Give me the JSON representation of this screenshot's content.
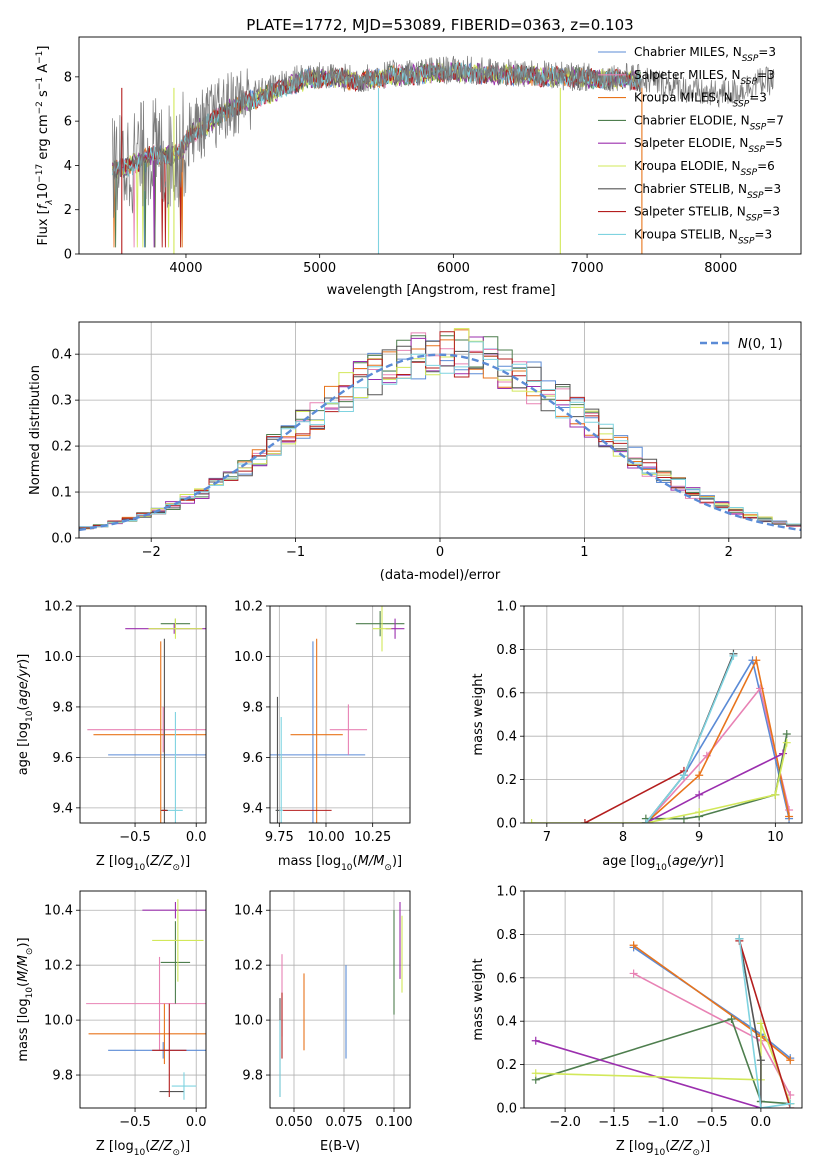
{
  "figure_title": "PLATE=1772, MJD=53089, FIBERID=0363, z=0.103",
  "colors": {
    "Chabrier MILES": "#5b8bd6",
    "Salpeter MILES": "#e882b4",
    "Kroupa MILES": "#e8741c",
    "Chabrier ELODIE": "#4e7e4e",
    "Salpeter ELODIE": "#9b2fae",
    "Kroupa ELODIE": "#d2e85a",
    "Chabrier STELIB": "#555555",
    "Salpeter STELIB": "#b41e1e",
    "Kroupa STELIB": "#7fd3e0",
    "gaussian": "#5b8bd6"
  },
  "chart_data": [
    {
      "id": "spectrum",
      "type": "line",
      "title": "PLATE=1772, MJD=53089, FIBERID=0363, z=0.103",
      "xlabel": "wavelength [Angstrom, rest frame]",
      "ylabel": "Flux [f_λ 10^-17 erg cm^-2 s^-1 A^-1]",
      "xlim": [
        3200,
        8600
      ],
      "ylim": [
        0,
        9.8
      ],
      "xticks": [
        4000,
        5000,
        6000,
        7000,
        8000
      ],
      "yticks": [
        0,
        2,
        4,
        6,
        8
      ],
      "legend": "right",
      "legend_entries": [
        {
          "name": "Chabrier MILES",
          "label_main": "Chabrier MILES, N",
          "label_sub": "SSP",
          "label_end": "=3"
        },
        {
          "name": "Salpeter MILES",
          "label_main": "Salpeter MILES, N",
          "label_sub": "SSP",
          "label_end": "=3"
        },
        {
          "name": "Kroupa MILES",
          "label_main": "Kroupa MILES, N",
          "label_sub": "SSP",
          "label_end": "=3"
        },
        {
          "name": "Chabrier ELODIE",
          "label_main": "Chabrier ELODIE, N",
          "label_sub": "SSP",
          "label_end": "=7"
        },
        {
          "name": "Salpeter ELODIE",
          "label_main": "Salpeter ELODIE, N",
          "label_sub": "SSP",
          "label_end": "=5"
        },
        {
          "name": "Kroupa ELODIE",
          "label_main": "Kroupa ELODIE, N",
          "label_sub": "SSP",
          "label_end": "=6"
        },
        {
          "name": "Chabrier STELIB",
          "label_main": "Chabrier STELIB, N",
          "label_sub": "SSP",
          "label_end": "=3"
        },
        {
          "name": "Salpeter STELIB",
          "label_main": "Salpeter STELIB, N",
          "label_sub": "SSP",
          "label_end": "=3"
        },
        {
          "name": "Kroupa STELIB",
          "label_main": "Kroupa STELIB, N",
          "label_sub": "SSP",
          "label_end": "=3"
        }
      ],
      "data_envelope": [
        [
          3450,
          3.9
        ],
        [
          3550,
          4.1
        ],
        [
          3650,
          4.4
        ],
        [
          3750,
          4.7
        ],
        [
          3850,
          4.3
        ],
        [
          3950,
          4.6
        ],
        [
          4050,
          5.6
        ],
        [
          4150,
          6.0
        ],
        [
          4250,
          6.4
        ],
        [
          4350,
          6.8
        ],
        [
          4500,
          7.2
        ],
        [
          4700,
          7.6
        ],
        [
          4900,
          8.1
        ],
        [
          5100,
          8.0
        ],
        [
          5300,
          7.9
        ],
        [
          5500,
          8.1
        ],
        [
          5700,
          8.2
        ],
        [
          5900,
          8.3
        ],
        [
          6100,
          8.3
        ],
        [
          6300,
          8.2
        ],
        [
          6500,
          8.1
        ],
        [
          6700,
          8.1
        ],
        [
          6900,
          8.0
        ],
        [
          7100,
          8.0
        ],
        [
          7300,
          8.0
        ],
        [
          7500,
          7.8
        ],
        [
          7700,
          7.5
        ],
        [
          7900,
          7.2
        ],
        [
          8100,
          7.3
        ],
        [
          8300,
          7.8
        ]
      ],
      "model_envelope": [
        [
          3450,
          3.8
        ],
        [
          3550,
          3.9
        ],
        [
          3650,
          4.2
        ],
        [
          3750,
          4.5
        ],
        [
          3850,
          4.4
        ],
        [
          3950,
          4.6
        ],
        [
          4050,
          5.5
        ],
        [
          4150,
          5.8
        ],
        [
          4250,
          6.3
        ],
        [
          4350,
          6.6
        ],
        [
          4500,
          7.0
        ],
        [
          4700,
          7.4
        ],
        [
          4900,
          7.9
        ],
        [
          5100,
          8.0
        ],
        [
          5300,
          7.8
        ],
        [
          5500,
          8.0
        ],
        [
          5700,
          8.1
        ],
        [
          5900,
          8.2
        ],
        [
          6100,
          8.2
        ],
        [
          6300,
          8.1
        ],
        [
          6500,
          8.1
        ],
        [
          6700,
          8.0
        ],
        [
          6900,
          8.0
        ],
        [
          7100,
          7.9
        ],
        [
          7300,
          7.9
        ],
        [
          7400,
          7.8
        ]
      ]
    },
    {
      "id": "residuals",
      "type": "line",
      "xlabel": "(data-model)/error",
      "ylabel": "Normed distribution",
      "xlim": [
        -2.5,
        2.5
      ],
      "ylim": [
        0,
        0.47
      ],
      "xticks": [
        -2,
        -1,
        0,
        1,
        2
      ],
      "yticks": [
        0.0,
        0.1,
        0.2,
        0.3,
        0.4
      ],
      "legend": "top-right",
      "legend_label": "N(0,1)",
      "bin_width": 0.1
    },
    {
      "id": "age_vs_Z",
      "type": "scatter",
      "xlabel": "Z [log10(Z/Z⊙)]",
      "ylabel": "age [log10(age/yr)]",
      "xlim": [
        -0.95,
        0.08
      ],
      "ylim": [
        9.34,
        10.2
      ],
      "xticks": [
        -0.5,
        0.0
      ],
      "yticks": [
        9.4,
        9.6,
        9.8,
        10.0,
        10.2
      ],
      "points": [
        {
          "series": "Chabrier MILES",
          "x": -0.27,
          "y": 9.61,
          "xerr": 0.45,
          "yerr": 0.0
        },
        {
          "series": "Salpeter MILES",
          "x": -0.27,
          "y": 9.71,
          "xerr": 0.62,
          "yerr": 0.09
        },
        {
          "series": "Kroupa MILES",
          "x": -0.29,
          "y": 9.69,
          "xerr": 0.55,
          "yerr": 0.37
        },
        {
          "series": "Chabrier ELODIE",
          "x": -0.17,
          "y": 10.13,
          "xerr": 0.12,
          "yerr": 0.02
        },
        {
          "series": "Salpeter ELODIE",
          "x": -0.18,
          "y": 10.11,
          "xerr": 0.4,
          "yerr": 0.02
        },
        {
          "series": "Kroupa ELODIE",
          "x": -0.17,
          "y": 10.11,
          "xerr": 0.22,
          "yerr": 0.04
        },
        {
          "series": "Chabrier STELIB",
          "x": -0.26,
          "y": 9.39,
          "xerr": 0.03,
          "yerr": 0.68
        },
        {
          "series": "Salpeter STELIB",
          "x": -0.26,
          "y": 9.39,
          "xerr": 0.02,
          "yerr": 0.0
        },
        {
          "series": "Kroupa STELIB",
          "x": -0.17,
          "y": 9.39,
          "xerr": 0.06,
          "yerr": 0.39
        }
      ]
    },
    {
      "id": "age_vs_mass",
      "type": "scatter",
      "xlabel": "mass [log10(M/M⊙)]",
      "ylabel": "",
      "xlim": [
        9.7,
        10.45
      ],
      "ylim": [
        9.34,
        10.2
      ],
      "xticks": [
        9.75,
        10.0,
        10.25
      ],
      "yticks": [
        9.4,
        9.6,
        9.8,
        10.0,
        10.2
      ],
      "points": [
        {
          "series": "Chabrier MILES",
          "x": 9.93,
          "y": 9.61,
          "xerr": 0.28,
          "yerr": 0.45
        },
        {
          "series": "Salpeter MILES",
          "x": 10.12,
          "y": 9.71,
          "xerr": 0.1,
          "yerr": 0.1
        },
        {
          "series": "Kroupa MILES",
          "x": 9.95,
          "y": 9.69,
          "xerr": 0.14,
          "yerr": 0.38
        },
        {
          "series": "Chabrier ELODIE",
          "x": 10.29,
          "y": 10.13,
          "xerr": 0.13,
          "yerr": 0.05
        },
        {
          "series": "Salpeter ELODIE",
          "x": 10.37,
          "y": 10.11,
          "xerr": 0.05,
          "yerr": 0.04
        },
        {
          "series": "Kroupa ELODIE",
          "x": 10.3,
          "y": 10.11,
          "xerr": 0.05,
          "yerr": 0.09
        },
        {
          "series": "Chabrier STELIB",
          "x": 9.74,
          "y": 9.39,
          "xerr": 0.01,
          "yerr": 0.45
        },
        {
          "series": "Salpeter STELIB",
          "x": 9.89,
          "y": 9.39,
          "xerr": 0.14,
          "yerr": 0.0
        },
        {
          "series": "Kroupa STELIB",
          "x": 9.76,
          "y": 9.39,
          "xerr": 0.01,
          "yerr": 0.37
        }
      ]
    },
    {
      "id": "weight_vs_age",
      "type": "line",
      "xlabel": "age [log10(age/yr)]",
      "ylabel": "mass weight",
      "xlim": [
        6.7,
        10.35
      ],
      "ylim": [
        0,
        1.0
      ],
      "xticks": [
        7,
        8,
        9,
        10
      ],
      "yticks": [
        0.0,
        0.2,
        0.4,
        0.6,
        0.8,
        1.0
      ],
      "series": [
        {
          "name": "Chabrier MILES",
          "x": [
            8.3,
            8.8,
            9.7,
            10.18
          ],
          "y": [
            0.0,
            0.22,
            0.75,
            0.02
          ]
        },
        {
          "name": "Salpeter MILES",
          "x": [
            8.3,
            9.1,
            9.8,
            10.18
          ],
          "y": [
            0.0,
            0.31,
            0.62,
            0.06
          ]
        },
        {
          "name": "Kroupa MILES",
          "x": [
            8.3,
            9.0,
            9.75,
            10.18
          ],
          "y": [
            0.0,
            0.22,
            0.75,
            0.03
          ]
        },
        {
          "name": "Chabrier ELODIE",
          "x": [
            8.3,
            8.8,
            9.0,
            10.0,
            10.15
          ],
          "y": [
            0.02,
            0.02,
            0.03,
            0.13,
            0.41
          ]
        },
        {
          "name": "Salpeter ELODIE",
          "x": [
            8.3,
            9.0,
            10.1
          ],
          "y": [
            0.0,
            0.13,
            0.32
          ]
        },
        {
          "name": "Kroupa ELODIE",
          "x": [
            6.8,
            8.3,
            9.0,
            10.0,
            10.15
          ],
          "y": [
            0.0,
            0.0,
            0.05,
            0.13,
            0.37
          ]
        },
        {
          "name": "Chabrier STELIB",
          "x": [
            8.3,
            8.8,
            9.45
          ],
          "y": [
            0.0,
            0.22,
            0.78
          ]
        },
        {
          "name": "Salpeter STELIB",
          "x": [
            7.5,
            8.8
          ],
          "y": [
            0.0,
            0.24
          ]
        },
        {
          "name": "Kroupa STELIB",
          "x": [
            8.3,
            8.8,
            9.45
          ],
          "y": [
            0.0,
            0.22,
            0.77
          ]
        }
      ]
    },
    {
      "id": "mass_vs_Z",
      "type": "scatter",
      "xlabel": "Z [log10(Z/Z⊙)]",
      "ylabel": "mass [log10(M/M⊙)]",
      "xlim": [
        -0.95,
        0.08
      ],
      "ylim": [
        9.68,
        10.47
      ],
      "xticks": [
        -0.5,
        0.0
      ],
      "yticks": [
        9.8,
        10.0,
        10.2,
        10.4
      ],
      "points": [
        {
          "series": "Chabrier MILES",
          "x": -0.27,
          "y": 9.89,
          "xerr": 0.45,
          "yerr": 0.03
        },
        {
          "series": "Salpeter MILES",
          "x": -0.3,
          "y": 10.06,
          "xerr": 0.6,
          "yerr": 0.17
        },
        {
          "series": "Kroupa MILES",
          "x": -0.26,
          "y": 9.95,
          "xerr": 0.62,
          "yerr": 0.11
        },
        {
          "series": "Chabrier ELODIE",
          "x": -0.17,
          "y": 10.21,
          "xerr": 0.12,
          "yerr": 0.15
        },
        {
          "series": "Salpeter ELODIE",
          "x": -0.17,
          "y": 10.4,
          "xerr": 0.27,
          "yerr": 0.03
        },
        {
          "series": "Kroupa ELODIE",
          "x": -0.15,
          "y": 10.29,
          "xerr": 0.21,
          "yerr": 0.15
        },
        {
          "series": "Chabrier STELIB",
          "x": -0.2,
          "y": 9.74,
          "xerr": 0.1,
          "yerr": 0.0
        },
        {
          "series": "Salpeter STELIB",
          "x": -0.22,
          "y": 9.89,
          "xerr": 0.14,
          "yerr": 0.17
        },
        {
          "series": "Kroupa STELIB",
          "x": -0.1,
          "y": 9.76,
          "xerr": 0.1,
          "yerr": 0.05
        }
      ]
    },
    {
      "id": "mass_vs_ebv",
      "type": "scatter",
      "xlabel": "E(B-V)",
      "ylabel": "",
      "xlim": [
        0.038,
        0.108
      ],
      "ylim": [
        9.68,
        10.47
      ],
      "xticks": [
        0.05,
        0.075,
        0.1
      ],
      "yticks": [
        9.8,
        10.0,
        10.2,
        10.4
      ],
      "points": [
        {
          "series": "Chabrier MILES",
          "x": 0.076,
          "y": 10.03,
          "yerr": 0.17
        },
        {
          "series": "Salpeter MILES",
          "x": 0.044,
          "y": 10.09,
          "yerr": 0.15
        },
        {
          "series": "Kroupa MILES",
          "x": 0.055,
          "y": 10.03,
          "yerr": 0.14
        },
        {
          "series": "Chabrier ELODIE",
          "x": 0.1,
          "y": 10.21,
          "yerr": 0.19
        },
        {
          "series": "Salpeter ELODIE",
          "x": 0.103,
          "y": 10.29,
          "yerr": 0.14
        },
        {
          "series": "Kroupa ELODIE",
          "x": 0.104,
          "y": 10.24,
          "yerr": 0.14
        },
        {
          "series": "Chabrier STELIB",
          "x": 0.043,
          "y": 9.9,
          "yerr": 0.18
        },
        {
          "series": "Salpeter STELIB",
          "x": 0.044,
          "y": 9.98,
          "yerr": 0.12
        },
        {
          "series": "Kroupa STELIB",
          "x": 0.043,
          "y": 9.86,
          "yerr": 0.14
        }
      ]
    },
    {
      "id": "weight_vs_Z",
      "type": "line",
      "xlabel": "Z [log10(Z/Z⊙)]",
      "ylabel": "mass weight",
      "xlim": [
        -2.42,
        0.42
      ],
      "ylim": [
        0,
        1.0
      ],
      "xticks": [
        -2.0,
        -1.5,
        -1.0,
        -0.5,
        0.0
      ],
      "yticks": [
        0.0,
        0.2,
        0.4,
        0.6,
        0.8,
        1.0
      ],
      "series": [
        {
          "name": "Chabrier MILES",
          "x": [
            -1.3,
            0.0,
            0.3
          ],
          "y": [
            0.74,
            0.34,
            0.23
          ]
        },
        {
          "name": "Salpeter MILES",
          "x": [
            -1.3,
            0.0,
            0.3
          ],
          "y": [
            0.62,
            0.31,
            0.06
          ]
        },
        {
          "name": "Kroupa MILES",
          "x": [
            -1.3,
            0.0,
            0.3
          ],
          "y": [
            0.75,
            0.33,
            0.22
          ]
        },
        {
          "name": "Chabrier ELODIE",
          "x": [
            -2.3,
            -0.3,
            0.0,
            0.0,
            0.3
          ],
          "y": [
            0.13,
            0.41,
            0.03,
            0.03,
            0.02
          ]
        },
        {
          "name": "Salpeter ELODIE",
          "x": [
            -2.3,
            0.0
          ],
          "y": [
            0.31,
            0.0
          ]
        },
        {
          "name": "Kroupa ELODIE",
          "x": [
            -2.3,
            0.0,
            0.0,
            0.3
          ],
          "y": [
            0.16,
            0.13,
            0.39,
            0.02
          ]
        },
        {
          "name": "Chabrier STELIB",
          "x": [
            -0.22,
            0.0,
            0.0
          ],
          "y": [
            0.78,
            0.22,
            0.0
          ]
        },
        {
          "name": "Salpeter STELIB",
          "x": [
            -0.22,
            0.3
          ],
          "y": [
            0.77,
            0.0
          ]
        },
        {
          "name": "Kroupa STELIB",
          "x": [
            -0.22,
            0.0,
            0.3
          ],
          "y": [
            0.78,
            0.0,
            0.02
          ]
        }
      ]
    }
  ]
}
